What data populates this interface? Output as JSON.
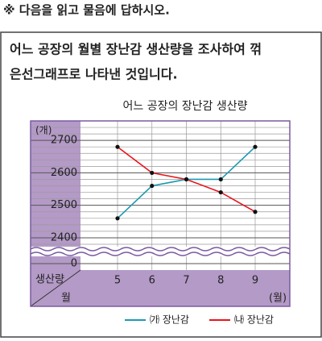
{
  "instruction": "※ 다음을 읽고 물음에 답하시오.",
  "passage": [
    "어느 공장의 월별 장난감 생산량을 조사하여 꺾",
    "은선그래프로 나타낸 것입니다."
  ],
  "chart_data": {
    "type": "line",
    "title": "어느 공장의 장난감 생산량",
    "y_label": "(개)",
    "x_label": "(월)",
    "row_header_top": "생산량",
    "row_header_bottom": "월",
    "categories": [
      "5",
      "6",
      "7",
      "8",
      "9"
    ],
    "series": [
      {
        "name": "㈎ 장난감",
        "color": "#1a9bb0",
        "values": [
          2460,
          2560,
          2580,
          2580,
          2680
        ]
      },
      {
        "name": "㈏ 장난감",
        "color": "#e8141c",
        "values": [
          2680,
          2600,
          2580,
          2540,
          2480
        ]
      }
    ],
    "ylim": [
      2380,
      2760
    ],
    "yticks": [
      2400,
      2500,
      2600,
      2700
    ],
    "minor_yticks": [
      2380,
      2420,
      2440,
      2460,
      2480,
      2520,
      2540,
      2560,
      2580,
      2620,
      2640,
      2660,
      2680,
      2720,
      2740,
      2760
    ],
    "break_tick": 0,
    "grid": true
  }
}
